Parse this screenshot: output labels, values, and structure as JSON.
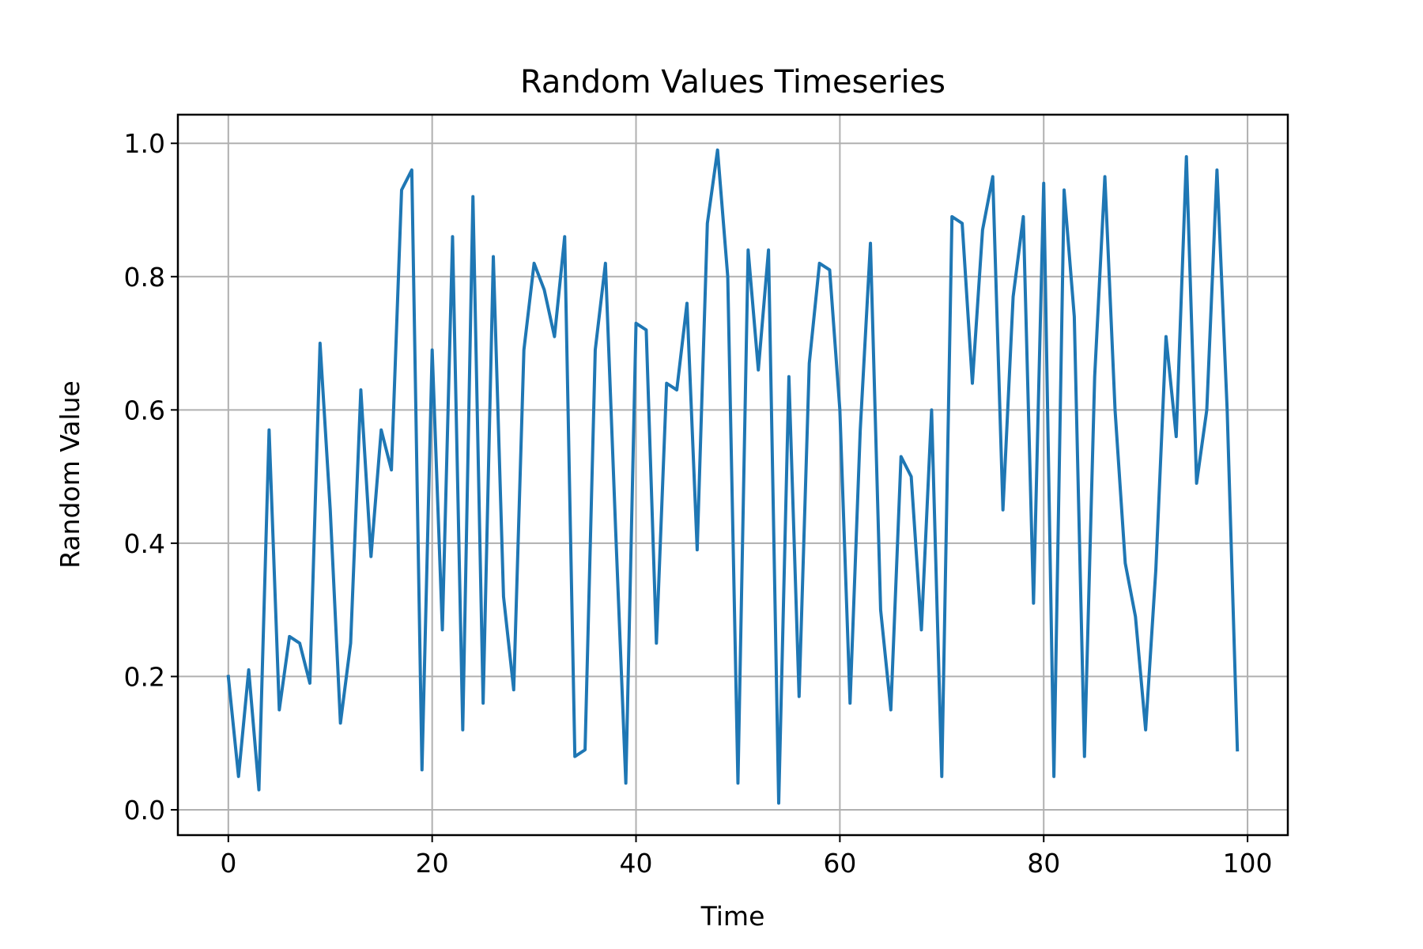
{
  "chart_data": {
    "type": "line",
    "title": "Random Values Timeseries",
    "xlabel": "Time",
    "ylabel": "Random Value",
    "xlim": [
      -4.95,
      103.95
    ],
    "ylim": [
      -0.038,
      1.043
    ],
    "xticks": [
      0,
      20,
      40,
      60,
      80,
      100
    ],
    "xtick_labels": [
      "0",
      "20",
      "40",
      "60",
      "80",
      "100"
    ],
    "yticks": [
      0.0,
      0.2,
      0.4,
      0.6,
      0.8,
      1.0
    ],
    "ytick_labels": [
      "0.0",
      "0.2",
      "0.4",
      "0.6",
      "0.8",
      "1.0"
    ],
    "grid": true,
    "series": [
      {
        "color": "#1f77b4",
        "x": [
          0,
          1,
          2,
          3,
          4,
          5,
          6,
          7,
          8,
          9,
          10,
          11,
          12,
          13,
          14,
          15,
          16,
          17,
          18,
          19,
          20,
          21,
          22,
          23,
          24,
          25,
          26,
          27,
          28,
          29,
          30,
          31,
          32,
          33,
          34,
          35,
          36,
          37,
          38,
          39,
          40,
          41,
          42,
          43,
          44,
          45,
          46,
          47,
          48,
          49,
          50,
          51,
          52,
          53,
          54,
          55,
          56,
          57,
          58,
          59,
          60,
          61,
          62,
          63,
          64,
          65,
          66,
          67,
          68,
          69,
          70,
          71,
          72,
          73,
          74,
          75,
          76,
          77,
          78,
          79,
          80,
          81,
          82,
          83,
          84,
          85,
          86,
          87,
          88,
          89,
          90,
          91,
          92,
          93,
          94,
          95,
          96,
          97,
          98,
          99
        ],
        "values": [
          0.2,
          0.05,
          0.21,
          0.03,
          0.57,
          0.15,
          0.26,
          0.25,
          0.19,
          0.7,
          0.45,
          0.13,
          0.25,
          0.63,
          0.38,
          0.57,
          0.51,
          0.93,
          0.96,
          0.06,
          0.69,
          0.27,
          0.86,
          0.12,
          0.92,
          0.16,
          0.83,
          0.32,
          0.18,
          0.69,
          0.82,
          0.78,
          0.71,
          0.86,
          0.08,
          0.09,
          0.69,
          0.82,
          0.42,
          0.04,
          0.73,
          0.72,
          0.25,
          0.64,
          0.63,
          0.76,
          0.39,
          0.88,
          0.99,
          0.8,
          0.04,
          0.84,
          0.66,
          0.84,
          0.01,
          0.65,
          0.17,
          0.67,
          0.82,
          0.81,
          0.6,
          0.16,
          0.57,
          0.85,
          0.3,
          0.15,
          0.53,
          0.5,
          0.27,
          0.6,
          0.05,
          0.89,
          0.88,
          0.64,
          0.87,
          0.95,
          0.45,
          0.77,
          0.89,
          0.31,
          0.94,
          0.05,
          0.93,
          0.74,
          0.08,
          0.65,
          0.95,
          0.6,
          0.37,
          0.29,
          0.12,
          0.36,
          0.71,
          0.56,
          0.98,
          0.49,
          0.6,
          0.96,
          0.6,
          0.09
        ]
      }
    ]
  }
}
